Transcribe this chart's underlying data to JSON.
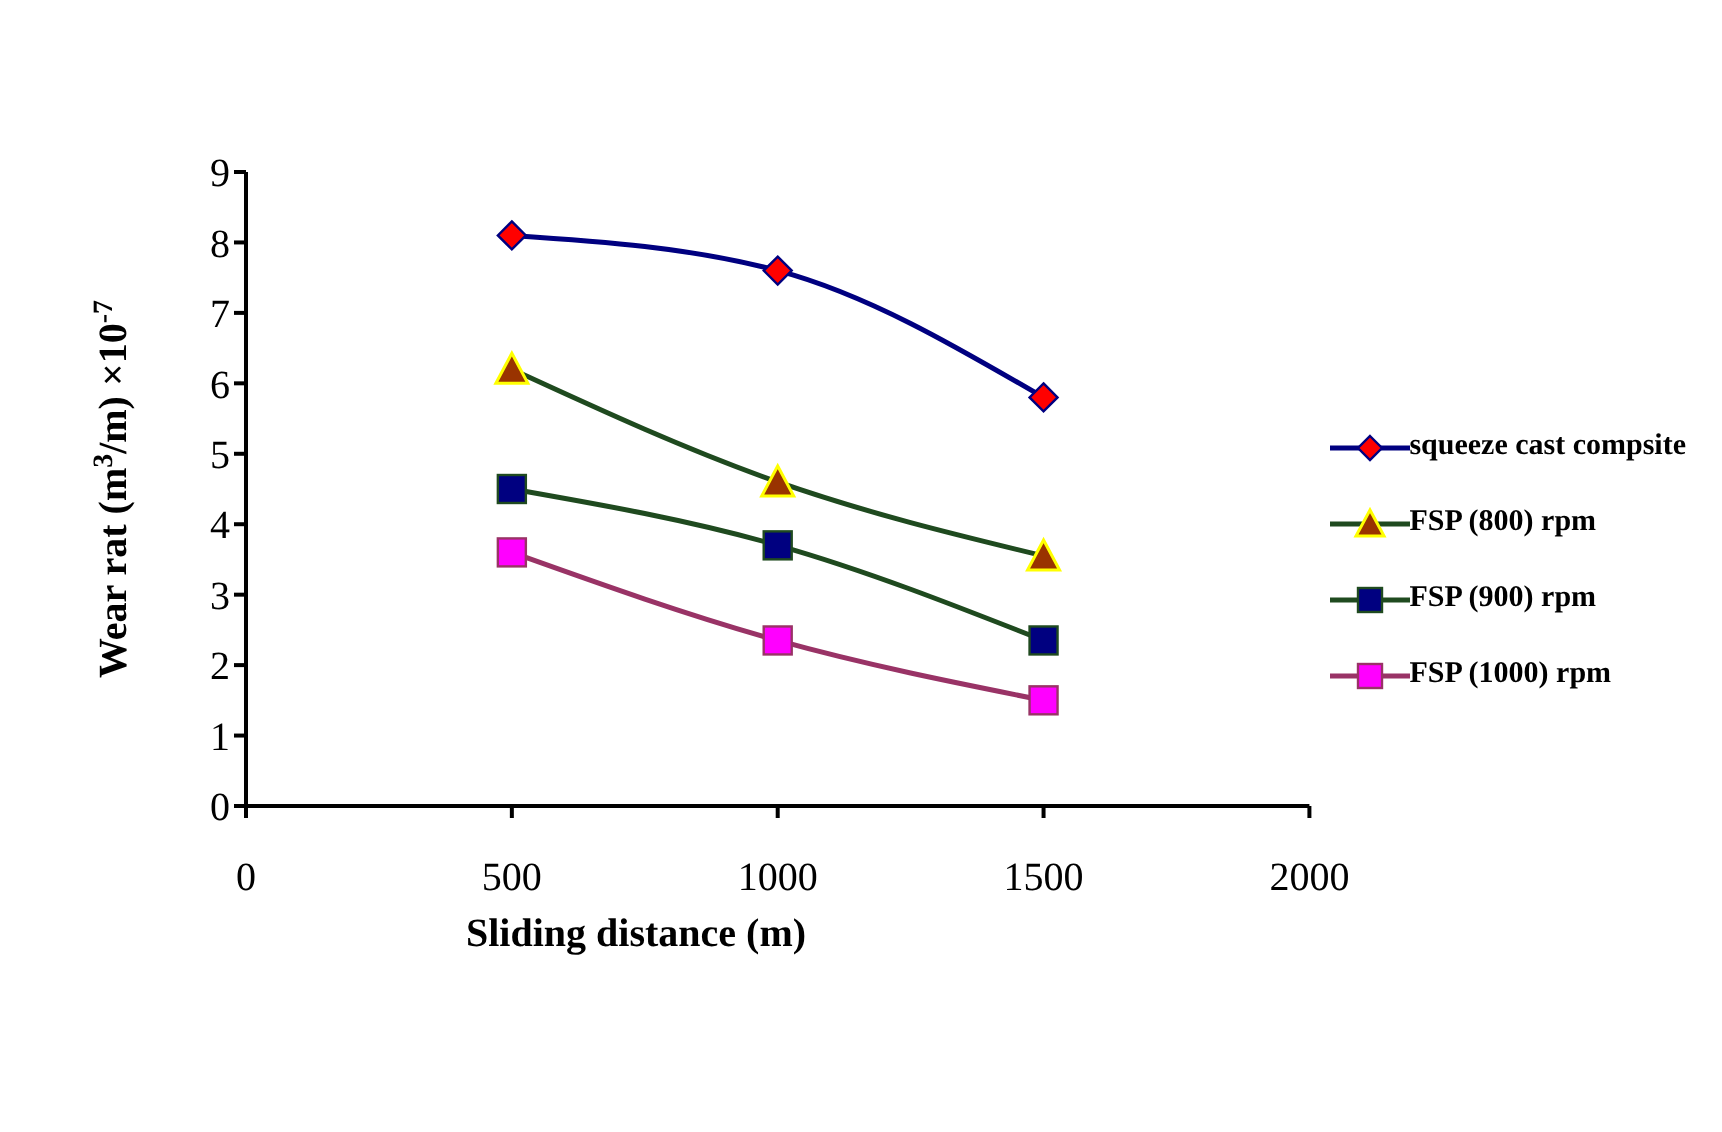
{
  "chart_data": {
    "type": "line",
    "xlabel": "Sliding distance (m)",
    "ylabel": "Wear rat (m$^{3}$/m) ×10$^{-7}$",
    "x": [
      500,
      1000,
      1500
    ],
    "xlim": [
      0,
      2000
    ],
    "xticks": [
      0,
      500,
      1000,
      1500,
      2000
    ],
    "ylim": [
      0,
      9
    ],
    "yticks": [
      0,
      1,
      2,
      3,
      4,
      5,
      6,
      7,
      8,
      9
    ],
    "grid": false,
    "legend": "right",
    "series": [
      {
        "name": "squeeze cast compsite",
        "color": "#000080",
        "colors": [
          "#ff0000",
          "#ff0000",
          "#ff0000"
        ],
        "marker": "diamond",
        "values": [
          8.1,
          7.6,
          5.8
        ]
      },
      {
        "name": "FSP (800) rpm",
        "color": "#1f4a1f",
        "colors": [
          "#993300",
          "#993300",
          "#993300"
        ],
        "marker": "triangle",
        "values": [
          6.2,
          4.6,
          3.55
        ]
      },
      {
        "name": "FSP (900) rpm",
        "color": "#1f4a1f",
        "colors": [
          "#000080",
          "#000080",
          "#000080"
        ],
        "marker": "square",
        "values": [
          4.5,
          3.7,
          2.35
        ]
      },
      {
        "name": "FSP (1000) rpm",
        "color": "#993366",
        "colors": [
          "#ff00ff",
          "#ff00ff",
          "#ff00ff"
        ],
        "marker": "square",
        "values": [
          3.6,
          2.35,
          1.5
        ]
      }
    ]
  }
}
